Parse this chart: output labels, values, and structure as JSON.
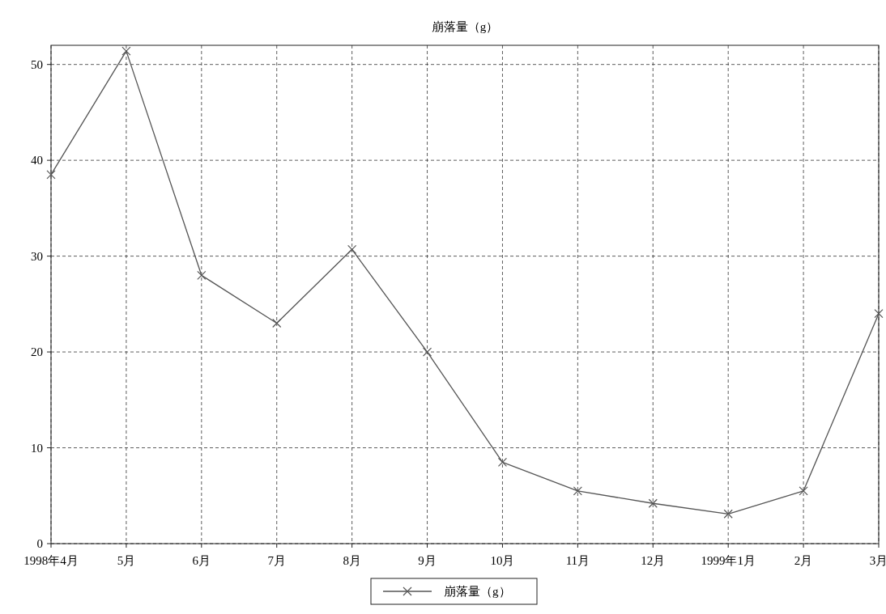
{
  "chart_data": {
    "type": "line",
    "title": "崩落量（g）",
    "categories": [
      "1998年4月",
      "5月",
      "6月",
      "7月",
      "8月",
      "9月",
      "10月",
      "11月",
      "12月",
      "1999年1月",
      "2月",
      "3月"
    ],
    "series": [
      {
        "name": "崩落量（g）",
        "color": "#555555",
        "values": [
          38.5,
          51.4,
          28.0,
          23.0,
          30.7,
          20.0,
          8.5,
          5.5,
          4.2,
          3.1,
          5.5,
          24.0
        ]
      }
    ],
    "ylim": [
      0,
      52
    ],
    "yticks": [
      0,
      10,
      20,
      30,
      40,
      50
    ],
    "grid": true,
    "legend": "bottom",
    "marker": "cross",
    "line_style": "solid"
  }
}
